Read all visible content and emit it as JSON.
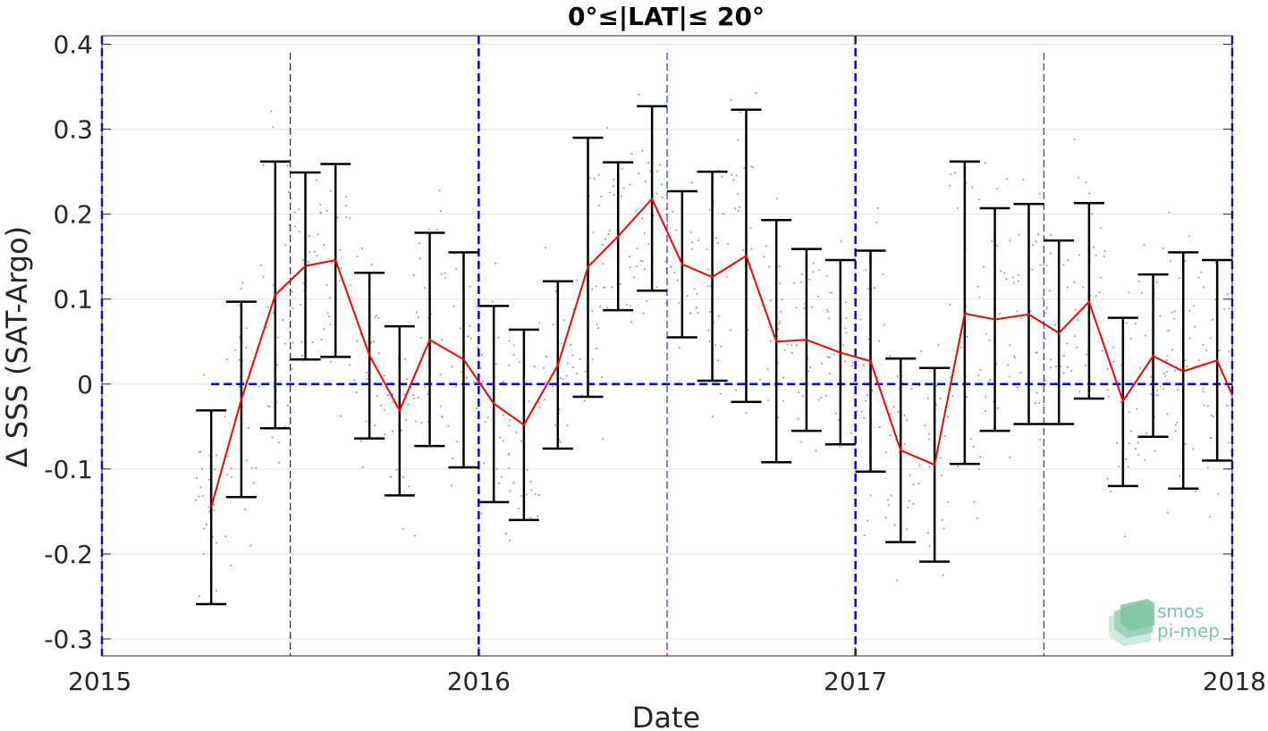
{
  "chart_data": {
    "type": "line",
    "title": "0°≤|LAT|≤ 20°",
    "xlabel": "Date",
    "ylabel": "Δ SSS (SAT-Argo)",
    "xlim": [
      2015.0,
      2018.0
    ],
    "ylim": [
      -0.32,
      0.41
    ],
    "x_ticks": [
      2015,
      2016,
      2017,
      2018
    ],
    "x_tick_labels": [
      "2015",
      "2016",
      "2017",
      "2018"
    ],
    "y_ticks": [
      -0.3,
      -0.2,
      -0.1,
      0,
      0.1,
      0.2,
      0.3,
      0.4
    ],
    "y_tick_labels": [
      "-0.3",
      "-0.2",
      "-0.1",
      "0",
      "0.1",
      "0.2",
      "0.3",
      "0.4"
    ],
    "grid": true,
    "series": [
      {
        "color": "#ff0000",
        "x": [
          2015.29,
          2015.37,
          2015.46,
          2015.54,
          2015.62,
          2015.71,
          2015.79,
          2015.87,
          2015.96,
          2016.04,
          2016.12,
          2016.21,
          2016.29,
          2016.37,
          2016.46,
          2016.54,
          2016.62,
          2016.71,
          2016.79,
          2016.87,
          2016.96,
          2017.04,
          2017.12,
          2017.21,
          2017.29,
          2017.37,
          2017.46,
          2017.54,
          2017.62,
          2017.71,
          2017.79,
          2017.87,
          2017.96,
          2018.0
        ],
        "y": [
          -0.145,
          -0.018,
          0.105,
          0.139,
          0.146,
          0.034,
          -0.031,
          0.052,
          0.029,
          -0.023,
          -0.048,
          0.022,
          0.138,
          0.174,
          0.218,
          0.141,
          0.126,
          0.151,
          0.05,
          0.052,
          0.037,
          0.027,
          -0.078,
          -0.095,
          0.083,
          0.076,
          0.082,
          0.06,
          0.097,
          -0.02,
          0.033,
          0.015,
          0.028,
          -0.013
        ]
      }
    ],
    "error_bars": {
      "color": "#000000",
      "x": [
        2015.29,
        2015.37,
        2015.46,
        2015.54,
        2015.62,
        2015.71,
        2015.79,
        2015.87,
        2015.96,
        2016.04,
        2016.12,
        2016.21,
        2016.29,
        2016.37,
        2016.46,
        2016.54,
        2016.62,
        2016.71,
        2016.79,
        2016.87,
        2016.96,
        2017.04,
        2017.12,
        2017.21,
        2017.29,
        2017.37,
        2017.46,
        2017.54,
        2017.62,
        2017.71,
        2017.79,
        2017.87,
        2017.96
      ],
      "lower": [
        -0.259,
        -0.133,
        -0.052,
        0.029,
        0.032,
        -0.064,
        -0.131,
        -0.073,
        -0.098,
        -0.139,
        -0.16,
        -0.076,
        -0.015,
        0.087,
        0.11,
        0.055,
        0.004,
        -0.021,
        -0.092,
        -0.055,
        -0.071,
        -0.103,
        -0.186,
        -0.209,
        -0.094,
        -0.055,
        -0.047,
        -0.047,
        -0.017,
        -0.12,
        -0.062,
        -0.123,
        -0.09
      ],
      "upper": [
        -0.031,
        0.097,
        0.262,
        0.249,
        0.259,
        0.131,
        0.068,
        0.178,
        0.155,
        0.092,
        0.064,
        0.121,
        0.29,
        0.261,
        0.327,
        0.227,
        0.25,
        0.323,
        0.193,
        0.159,
        0.146,
        0.157,
        0.03,
        0.019,
        0.262,
        0.207,
        0.212,
        0.169,
        0.213,
        0.078,
        0.129,
        0.155,
        0.146
      ]
    },
    "reference_lines": {
      "color": "#0000ff",
      "zero_line_y": 0,
      "zero_line_x_range": [
        2015.29,
        2018.0
      ],
      "year_lines_x": [
        2015,
        2016,
        2017,
        2018
      ],
      "mid_year_lines_x": [
        2015.5,
        2016.5,
        2017.5
      ],
      "mid_year_line_colors": [
        "#000000",
        "#0000ff",
        "#0000ff"
      ]
    },
    "scatter_color": "#999999"
  },
  "logo": {
    "line1": "smos",
    "line2": "pi-mep",
    "color": "#7fc4a3"
  }
}
